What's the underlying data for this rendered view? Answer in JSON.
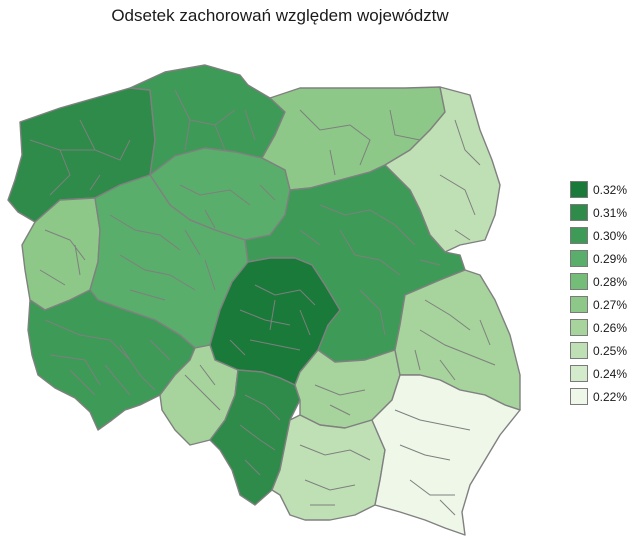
{
  "title": "Odsetek zachorowań względem województw",
  "legend": {
    "items": [
      {
        "label": "0.32%",
        "color": "#1a7a3a"
      },
      {
        "label": "0.31%",
        "color": "#2e8b4a"
      },
      {
        "label": "0.30%",
        "color": "#3d9a57"
      },
      {
        "label": "0.29%",
        "color": "#5aae6b"
      },
      {
        "label": "0.28%",
        "color": "#74bd79"
      },
      {
        "label": "0.27%",
        "color": "#8dc888"
      },
      {
        "label": "0.26%",
        "color": "#a6d49c"
      },
      {
        "label": "0.25%",
        "color": "#bfe0b4"
      },
      {
        "label": "0.24%",
        "color": "#d4ebcb"
      },
      {
        "label": "0.22%",
        "color": "#eef7e8"
      }
    ]
  },
  "regions": [
    {
      "name": "zachodniopomorskie",
      "value": "0.31%",
      "color": "#2e8b4a"
    },
    {
      "name": "pomorskie",
      "value": "0.30%",
      "color": "#3d9a57"
    },
    {
      "name": "warmińsko-mazurskie",
      "value": "0.27%",
      "color": "#8dc888"
    },
    {
      "name": "podlaskie",
      "value": "0.25%",
      "color": "#bfe0b4"
    },
    {
      "name": "kujawsko-pomorskie",
      "value": "0.29%",
      "color": "#5aae6b"
    },
    {
      "name": "lubuskie",
      "value": "0.27%",
      "color": "#8dc888"
    },
    {
      "name": "wielkopolskie",
      "value": "0.29%",
      "color": "#5aae6b"
    },
    {
      "name": "mazowieckie",
      "value": "0.30%",
      "color": "#3d9a57"
    },
    {
      "name": "łódzkie",
      "value": "0.32%",
      "color": "#1a7a3a"
    },
    {
      "name": "dolnośląskie",
      "value": "0.30%",
      "color": "#3d9a57"
    },
    {
      "name": "opolskie",
      "value": "0.26%",
      "color": "#a6d49c"
    },
    {
      "name": "śląskie",
      "value": "0.31%",
      "color": "#2e8b4a"
    },
    {
      "name": "świętokrzyskie",
      "value": "0.26%",
      "color": "#a6d49c"
    },
    {
      "name": "lubelskie",
      "value": "0.26%",
      "color": "#a6d49c"
    },
    {
      "name": "małopolskie",
      "value": "0.25%",
      "color": "#bfe0b4"
    },
    {
      "name": "podkarpackie",
      "value": "0.22%",
      "color": "#eef7e8"
    }
  ]
}
